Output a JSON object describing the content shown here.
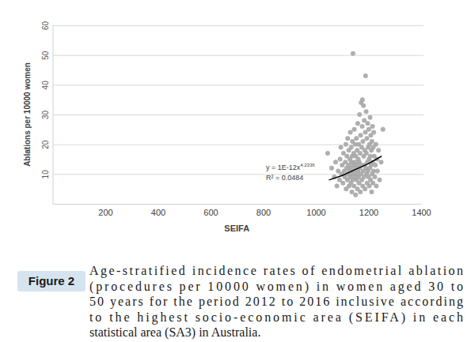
{
  "chart_data": {
    "type": "scatter",
    "x_label": "SEIFA",
    "y_label": "Ablations per 10000 women",
    "xlim": [
      0,
      1400
    ],
    "xticks": [
      200,
      400,
      600,
      800,
      1000,
      1200,
      1400
    ],
    "ylim": [
      0,
      60
    ],
    "yticks": [
      10,
      20,
      30,
      40,
      50,
      60
    ],
    "grid": true,
    "annotations": [
      {
        "text": "y = 1E-12x",
        "superscript": "4.2336"
      },
      {
        "text": "R² = 0.0484"
      }
    ],
    "series": [
      {
        "type": "scatter",
        "color": "#a6a6a6",
        "marker": "circle",
        "x": [
          1045,
          1060,
          1070,
          1075,
          1080,
          1085,
          1090,
          1092,
          1095,
          1098,
          1100,
          1103,
          1105,
          1108,
          1110,
          1112,
          1114,
          1115,
          1117,
          1118,
          1120,
          1121,
          1122,
          1124,
          1125,
          1126,
          1128,
          1129,
          1130,
          1131,
          1132,
          1133,
          1134,
          1135,
          1136,
          1137,
          1138,
          1139,
          1140,
          1141,
          1142,
          1143,
          1144,
          1145,
          1146,
          1147,
          1148,
          1149,
          1150,
          1151,
          1152,
          1153,
          1154,
          1155,
          1156,
          1157,
          1158,
          1159,
          1160,
          1161,
          1162,
          1163,
          1164,
          1165,
          1166,
          1167,
          1168,
          1169,
          1170,
          1171,
          1172,
          1173,
          1174,
          1175,
          1176,
          1177,
          1178,
          1179,
          1180,
          1181,
          1182,
          1183,
          1184,
          1185,
          1186,
          1187,
          1188,
          1189,
          1190,
          1191,
          1192,
          1193,
          1194,
          1195,
          1196,
          1197,
          1198,
          1199,
          1200,
          1201,
          1202,
          1203,
          1204,
          1205,
          1206,
          1207,
          1208,
          1209,
          1210,
          1211,
          1212,
          1213,
          1214,
          1215,
          1216,
          1217,
          1218,
          1219,
          1220,
          1222,
          1224,
          1226,
          1228,
          1230,
          1232,
          1234,
          1238,
          1242,
          1248,
          1255
        ],
        "values": [
          17,
          12,
          9,
          14,
          6,
          11,
          8,
          15,
          19,
          10,
          13,
          7,
          17,
          11,
          9,
          14,
          20,
          5,
          12,
          16,
          8,
          22,
          10,
          13,
          18,
          6,
          11,
          15,
          9,
          24,
          12,
          7,
          19,
          14,
          10,
          4,
          16,
          21,
          8,
          50.5,
          13,
          11,
          17,
          6,
          25,
          9,
          14,
          20,
          12,
          3,
          16,
          10,
          22,
          8,
          13,
          18,
          5,
          27,
          11,
          15,
          9,
          20,
          7,
          14,
          30,
          12,
          17,
          4,
          23,
          10,
          34,
          13,
          19,
          8,
          26,
          35,
          6,
          21,
          11,
          33,
          16,
          9,
          28,
          13,
          18,
          5,
          24,
          43,
          12,
          31,
          17,
          10,
          22,
          7,
          14,
          27,
          11,
          19,
          9,
          25,
          15,
          6,
          20,
          12,
          29,
          16,
          8,
          23,
          13,
          18,
          4,
          21,
          10,
          26,
          14,
          7,
          19,
          11,
          24,
          16,
          9,
          13,
          20,
          6,
          15,
          11,
          18,
          8,
          14,
          25
        ]
      },
      {
        "type": "line",
        "color": "#000000",
        "line_style": "solid",
        "x": [
          1050,
          1100,
          1150,
          1200,
          1250
        ],
        "values": [
          8,
          9.5,
          11.5,
          13.5,
          16
        ]
      }
    ]
  },
  "figure": {
    "label": "Figure 2",
    "caption_lines": [
      "Age-stratified incidence rates of endometrial ablation",
      "(procedures per 10000 women) in women aged 30 to",
      "50 years for the period 2012 to 2016 inclusive according",
      "to the highest socio-economic area (SEIFA) in each",
      "statistical area (SA3) in Australia."
    ]
  }
}
